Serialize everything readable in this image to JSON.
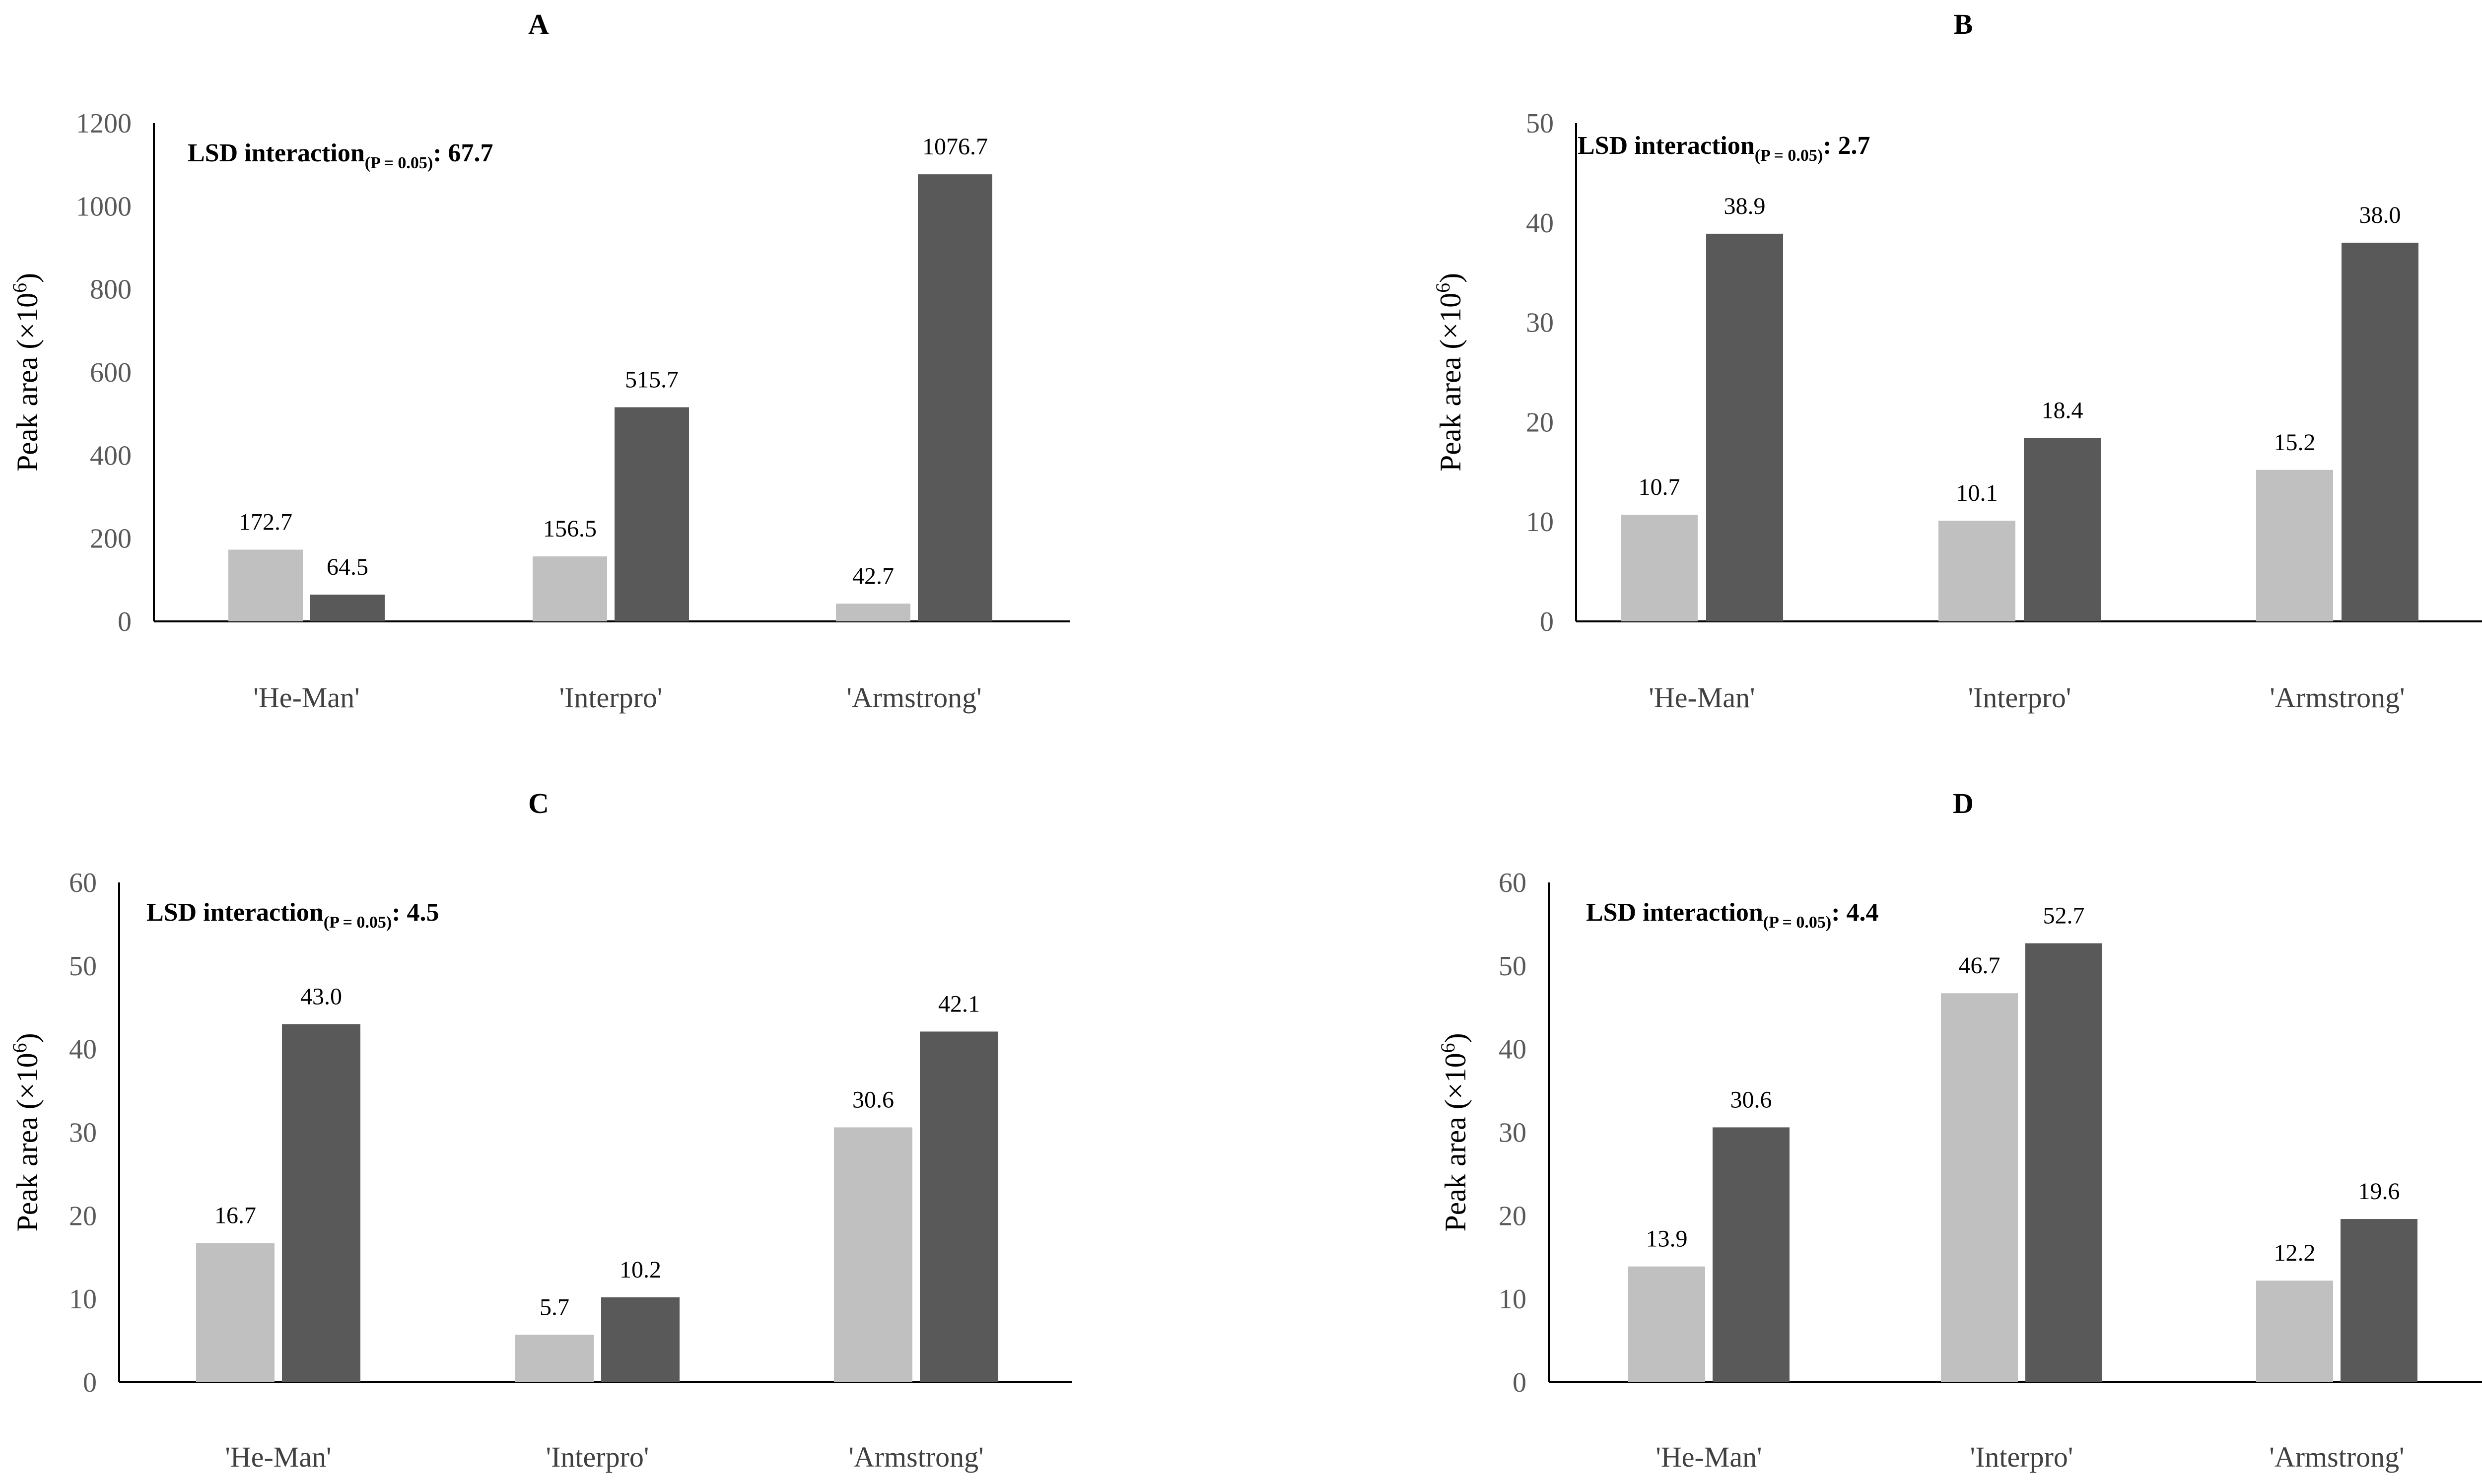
{
  "figure": "Peak area (×10⁶) by cultivar and treatment, panels A–D",
  "colors": {
    "series1": "#c0c0c0",
    "series2": "#595959",
    "axis": "#000000"
  },
  "chart_data": [
    {
      "panel": "A",
      "type": "bar",
      "categories": [
        "'He-Man'",
        "'Interpro'",
        "'Armstrong'"
      ],
      "series": [
        {
          "name": "light",
          "values": [
            172.7,
            156.5,
            42.7
          ],
          "labels": [
            "172.7",
            "156.5",
            "42.7"
          ]
        },
        {
          "name": "dark",
          "values": [
            64.5,
            515.7,
            1076.7
          ],
          "labels": [
            "64.5",
            "515.7",
            "1076.7"
          ]
        }
      ],
      "ylim": [
        0,
        1200
      ],
      "yticks": [
        0,
        200,
        400,
        600,
        800,
        1000,
        1200
      ],
      "ylabel_main": "Peak area (×10",
      "ylabel_sup": "6",
      "ylabel_close": ")",
      "lsd": {
        "prefix": "LSD interaction",
        "sub": "(P = 0.05)",
        "value": ": 67.7"
      }
    },
    {
      "panel": "B",
      "type": "bar",
      "categories": [
        "'He-Man'",
        "'Interpro'",
        "'Armstrong'"
      ],
      "series": [
        {
          "name": "light",
          "values": [
            10.7,
            10.1,
            15.2
          ],
          "labels": [
            "10.7",
            "10.1",
            "15.2"
          ]
        },
        {
          "name": "dark",
          "values": [
            38.9,
            18.4,
            38.0
          ],
          "labels": [
            "38.9",
            "18.4",
            "38.0"
          ]
        }
      ],
      "ylim": [
        0,
        50
      ],
      "yticks": [
        0,
        10,
        20,
        30,
        40,
        50
      ],
      "ylabel_main": "Peak area (×10",
      "ylabel_sup": "6",
      "ylabel_close": ")",
      "lsd": {
        "prefix": "LSD interaction",
        "sub": "(P = 0.05)",
        "value": ": 2.7"
      }
    },
    {
      "panel": "C",
      "type": "bar",
      "categories": [
        "'He-Man'",
        "'Interpro'",
        "'Armstrong'"
      ],
      "series": [
        {
          "name": "light",
          "values": [
            16.7,
            5.7,
            30.6
          ],
          "labels": [
            "16.7",
            "5.7",
            "30.6"
          ]
        },
        {
          "name": "dark",
          "values": [
            43.0,
            10.2,
            42.1
          ],
          "labels": [
            "43.0",
            "10.2",
            "42.1"
          ]
        }
      ],
      "ylim": [
        0,
        60
      ],
      "yticks": [
        0,
        10,
        20,
        30,
        40,
        50,
        60
      ],
      "ylabel_main": "Peak area (×10",
      "ylabel_sup": "6",
      "ylabel_close": ")",
      "lsd": {
        "prefix": "LSD interaction",
        "sub": "(P = 0.05)",
        "value": ": 4.5"
      }
    },
    {
      "panel": "D",
      "type": "bar",
      "categories": [
        "'He-Man'",
        "'Interpro'",
        "'Armstrong'"
      ],
      "series": [
        {
          "name": "light",
          "values": [
            13.9,
            46.7,
            12.2
          ],
          "labels": [
            "13.9",
            "46.7",
            "12.2"
          ]
        },
        {
          "name": "dark",
          "values": [
            30.6,
            52.7,
            19.6
          ],
          "labels": [
            "30.6",
            "52.7",
            "19.6"
          ]
        }
      ],
      "ylim": [
        0,
        60
      ],
      "yticks": [
        0,
        10,
        20,
        30,
        40,
        50,
        60
      ],
      "ylabel_main": "Peak area (×10",
      "ylabel_sup": "6",
      "ylabel_close": ")",
      "lsd": {
        "prefix": "LSD interaction",
        "sub": "(P = 0.05)",
        "value": ": 4.4"
      }
    }
  ]
}
